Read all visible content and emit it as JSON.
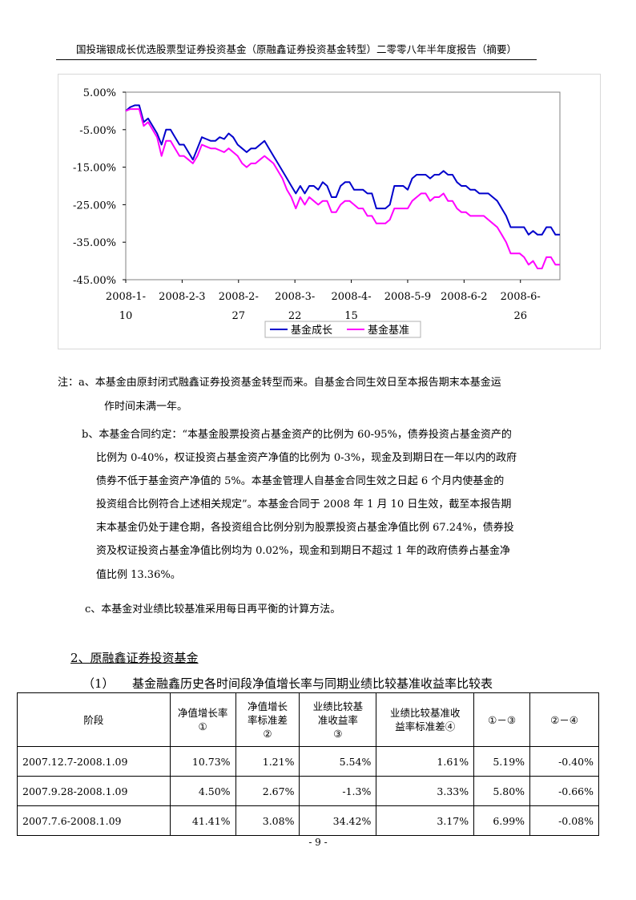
{
  "header": {
    "title": "国投瑞银成长优选股票型证券投资基金（原融鑫证券投资基金转型）二零零八年半年度报告（摘要）"
  },
  "chart_data": {
    "type": "line",
    "y_ticks": [
      "5.00%",
      "-5.00%",
      "-15.00%",
      "-25.00%",
      "-35.00%",
      "-45.00%"
    ],
    "ylim": [
      -45,
      5
    ],
    "x_ticks": [
      {
        "line1": "2008-1-",
        "line2": "10"
      },
      {
        "line1": "2008-2-3",
        "line2": ""
      },
      {
        "line1": "2008-2-",
        "line2": "27"
      },
      {
        "line1": "2008-3-",
        "line2": "22"
      },
      {
        "line1": "2008-4-",
        "line2": "15"
      },
      {
        "line1": "2008-5-9",
        "line2": ""
      },
      {
        "line1": "2008-6-2",
        "line2": ""
      },
      {
        "line1": "2008-6-",
        "line2": "26"
      }
    ],
    "series": [
      {
        "name": "基金成长",
        "color": "#0000cc",
        "values": [
          0,
          1,
          1.5,
          1.5,
          -3,
          -2,
          -4,
          -6,
          -9,
          -5,
          -5,
          -7,
          -9,
          -9,
          -11,
          -13,
          -10,
          -7,
          -7.5,
          -8,
          -8,
          -7,
          -7.5,
          -6,
          -7,
          -9,
          -10,
          -11,
          -10,
          -10,
          -9,
          -8,
          -10,
          -12,
          -14,
          -16,
          -18,
          -20,
          -22,
          -20,
          -22,
          -20,
          -20,
          -21,
          -19,
          -20,
          -23,
          -23,
          -20,
          -19,
          -19,
          -21,
          -21,
          -21,
          -22,
          -22,
          -26,
          -26,
          -26,
          -25,
          -20,
          -20,
          -20,
          -21,
          -18,
          -17,
          -17,
          -17,
          -18,
          -17,
          -17,
          -16,
          -17,
          -17,
          -19,
          -20,
          -20,
          -21,
          -21,
          -22,
          -22,
          -22,
          -23,
          -24,
          -26,
          -28,
          -31,
          -31,
          -31,
          -31,
          -33,
          -32,
          -33,
          -33,
          -31,
          -31,
          -33,
          -33
        ]
      },
      {
        "name": "基金基准",
        "color": "#ff00ff",
        "values": [
          0,
          0.5,
          0.5,
          0.5,
          -4,
          -3,
          -5,
          -7,
          -12,
          -8,
          -8,
          -10,
          -12,
          -12,
          -13,
          -14,
          -12,
          -9,
          -9.5,
          -10,
          -10,
          -10.5,
          -11,
          -10,
          -11,
          -12,
          -14,
          -15,
          -14,
          -14,
          -13,
          -12,
          -13,
          -14,
          -16,
          -18,
          -21,
          -23,
          -26,
          -23,
          -25,
          -23,
          -24,
          -25,
          -24,
          -24,
          -27,
          -27,
          -25,
          -24,
          -24,
          -25,
          -26,
          -26,
          -28,
          -28,
          -30,
          -30,
          -30,
          -29,
          -26,
          -26,
          -26,
          -26,
          -24,
          -23,
          -22,
          -22,
          -24,
          -23,
          -23,
          -22,
          -24,
          -24,
          -26,
          -27,
          -27,
          -28,
          -28,
          -28,
          -28,
          -29,
          -30,
          -31,
          -33,
          -35,
          -38,
          -38,
          -38,
          -39,
          -41,
          -40,
          -42,
          -42,
          -39,
          -39,
          -41,
          -41
        ]
      }
    ],
    "legend_position": "bottom"
  },
  "notes": {
    "a_line1": "注：a、本基金由原封闭式融鑫证券投资基金转型而来。自基金合同生效日至本报告期末本基金运",
    "a_line2": "作时间未满一年。",
    "b_line1": "b、本基金合同约定：“本基金股票投资占基金资产的比例为 60-95%，债券投资占基金资产的",
    "b_line2": "比例为 0-40%，权证投资占基金资产净值的比例为 0-3%，现金及到期日在一年以内的政府",
    "b_line3": "债券不低于基金资产净值的 5%。本基金管理人自基金合同生效之日起 6 个月内使基金的",
    "b_line4": "投资组合比例符合上述相关规定”。本基金合同于 2008 年 1 月 10 日生效，截至本报告期",
    "b_line5": "末本基金仍处于建仓期，各投资组合比例分别为股票投资占基金净值比例 67.24%，债券投",
    "b_line6": "资及权证投资占基金净值比例均为 0.02%，现金和到期日不超过 1 年的政府债券占基金净",
    "b_line7": "值比例 13.36%。",
    "c_line1": "c、本基金对业绩比较基准采用每日再平衡的计算方法。"
  },
  "section": {
    "title": "2、原融鑫证券投资基金",
    "table_title": "（1）　　基金融鑫历史各时间段净值增长率与同期业绩比较基准收益率比较表"
  },
  "table": {
    "headers": [
      {
        "l1": "阶段",
        "l2": "",
        "l3": ""
      },
      {
        "l1": "净值增长率",
        "l2": "①",
        "l3": ""
      },
      {
        "l1": "净值增长",
        "l2": "率标准差",
        "l3": "②"
      },
      {
        "l1": "业绩比较基",
        "l2": "准收益率",
        "l3": "③"
      },
      {
        "l1": "业绩比较基准收",
        "l2": "益率标准差④",
        "l3": ""
      },
      {
        "l1": "①－③",
        "l2": "",
        "l3": ""
      },
      {
        "l1": "②－④",
        "l2": "",
        "l3": ""
      }
    ],
    "rows": [
      [
        "2007.12.7-2008.1.09",
        "10.73%",
        "1.21%",
        "5.54%",
        "1.61%",
        "5.19%",
        "-0.40%"
      ],
      [
        "2007.9.28-2008.1.09",
        "4.50%",
        "2.67%",
        "-1.3%",
        "3.33%",
        "5.80%",
        "-0.66%"
      ],
      [
        "2007.7.6-2008.1.09",
        "41.41%",
        "3.08%",
        "34.42%",
        "3.17%",
        "6.99%",
        "-0.08%"
      ]
    ]
  },
  "footer": {
    "page": "- 9 -"
  }
}
